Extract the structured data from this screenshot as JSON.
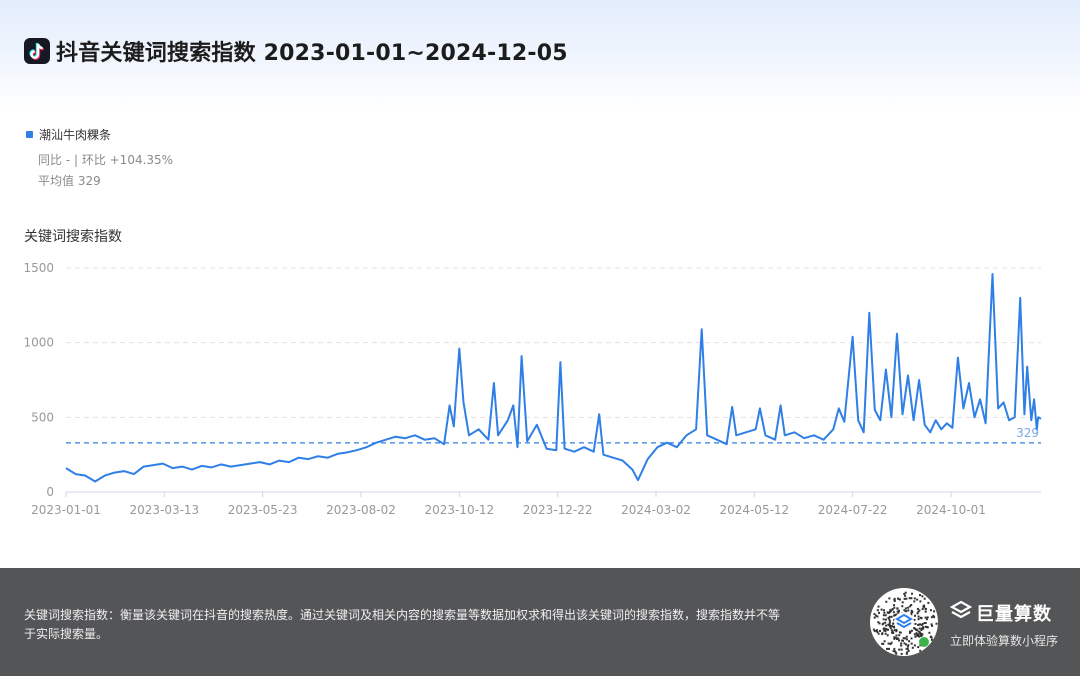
{
  "header": {
    "title": "抖音关键词搜索指数 2023-01-01~2024-12-05",
    "logo_icon": "douyin-logo-icon"
  },
  "legend": {
    "series_name": "潮汕牛肉粿条",
    "yoy_mom": "同比 - | 环比 +104.35%",
    "average": "平均值 329"
  },
  "chart_data": {
    "type": "line",
    "ylabel": "关键词搜索指数",
    "ylim": [
      0,
      1500
    ],
    "yticks": [
      0,
      500,
      1000,
      1500
    ],
    "x_range": [
      "2023-01-01",
      "2024-12-05"
    ],
    "x_ticks": [
      "2023-01-01",
      "2023-03-13",
      "2023-05-23",
      "2023-08-02",
      "2023-10-12",
      "2023-12-22",
      "2024-03-02",
      "2024-05-12",
      "2024-07-22",
      "2024-10-01"
    ],
    "grid": "horizontal-dashed",
    "average_line": {
      "value": 329,
      "label": "329"
    },
    "series": [
      {
        "name": "潮汕牛肉粿条",
        "color": "#2f7fe6",
        "points": [
          [
            "2023-01-01",
            160
          ],
          [
            "2023-01-08",
            120
          ],
          [
            "2023-01-15",
            110
          ],
          [
            "2023-01-22",
            70
          ],
          [
            "2023-01-29",
            110
          ],
          [
            "2023-02-05",
            130
          ],
          [
            "2023-02-12",
            140
          ],
          [
            "2023-02-19",
            120
          ],
          [
            "2023-02-26",
            170
          ],
          [
            "2023-03-05",
            180
          ],
          [
            "2023-03-12",
            190
          ],
          [
            "2023-03-19",
            160
          ],
          [
            "2023-03-26",
            170
          ],
          [
            "2023-04-02",
            150
          ],
          [
            "2023-04-09",
            175
          ],
          [
            "2023-04-16",
            165
          ],
          [
            "2023-04-23",
            185
          ],
          [
            "2023-04-30",
            170
          ],
          [
            "2023-05-07",
            180
          ],
          [
            "2023-05-14",
            190
          ],
          [
            "2023-05-21",
            200
          ],
          [
            "2023-05-28",
            185
          ],
          [
            "2023-06-04",
            210
          ],
          [
            "2023-06-11",
            200
          ],
          [
            "2023-06-18",
            230
          ],
          [
            "2023-06-25",
            220
          ],
          [
            "2023-07-02",
            240
          ],
          [
            "2023-07-09",
            230
          ],
          [
            "2023-07-16",
            255
          ],
          [
            "2023-07-23",
            265
          ],
          [
            "2023-07-30",
            280
          ],
          [
            "2023-08-06",
            300
          ],
          [
            "2023-08-13",
            330
          ],
          [
            "2023-08-20",
            350
          ],
          [
            "2023-08-27",
            370
          ],
          [
            "2023-09-03",
            360
          ],
          [
            "2023-09-10",
            380
          ],
          [
            "2023-09-17",
            350
          ],
          [
            "2023-09-24",
            360
          ],
          [
            "2023-10-01",
            320
          ],
          [
            "2023-10-05",
            580
          ],
          [
            "2023-10-08",
            440
          ],
          [
            "2023-10-12",
            960
          ],
          [
            "2023-10-15",
            600
          ],
          [
            "2023-10-19",
            380
          ],
          [
            "2023-10-26",
            420
          ],
          [
            "2023-11-02",
            350
          ],
          [
            "2023-11-06",
            730
          ],
          [
            "2023-11-09",
            380
          ],
          [
            "2023-11-16",
            480
          ],
          [
            "2023-11-20",
            580
          ],
          [
            "2023-11-23",
            300
          ],
          [
            "2023-11-26",
            910
          ],
          [
            "2023-11-30",
            340
          ],
          [
            "2023-12-07",
            450
          ],
          [
            "2023-12-14",
            290
          ],
          [
            "2023-12-21",
            280
          ],
          [
            "2023-12-24",
            870
          ],
          [
            "2023-12-27",
            290
          ],
          [
            "2024-01-03",
            270
          ],
          [
            "2024-01-10",
            300
          ],
          [
            "2024-01-17",
            270
          ],
          [
            "2024-01-21",
            520
          ],
          [
            "2024-01-24",
            250
          ],
          [
            "2024-01-31",
            230
          ],
          [
            "2024-02-07",
            210
          ],
          [
            "2024-02-14",
            150
          ],
          [
            "2024-02-18",
            80
          ],
          [
            "2024-02-25",
            220
          ],
          [
            "2024-03-03",
            300
          ],
          [
            "2024-03-10",
            330
          ],
          [
            "2024-03-17",
            300
          ],
          [
            "2024-03-24",
            380
          ],
          [
            "2024-03-31",
            420
          ],
          [
            "2024-04-04",
            1090
          ],
          [
            "2024-04-08",
            380
          ],
          [
            "2024-04-15",
            350
          ],
          [
            "2024-04-22",
            320
          ],
          [
            "2024-04-26",
            570
          ],
          [
            "2024-04-29",
            380
          ],
          [
            "2024-05-06",
            400
          ],
          [
            "2024-05-13",
            420
          ],
          [
            "2024-05-16",
            560
          ],
          [
            "2024-05-20",
            380
          ],
          [
            "2024-05-27",
            350
          ],
          [
            "2024-05-31",
            580
          ],
          [
            "2024-06-03",
            380
          ],
          [
            "2024-06-10",
            400
          ],
          [
            "2024-06-17",
            360
          ],
          [
            "2024-06-24",
            380
          ],
          [
            "2024-07-01",
            350
          ],
          [
            "2024-07-08",
            420
          ],
          [
            "2024-07-12",
            560
          ],
          [
            "2024-07-16",
            470
          ],
          [
            "2024-07-22",
            1040
          ],
          [
            "2024-07-26",
            480
          ],
          [
            "2024-07-30",
            400
          ],
          [
            "2024-08-03",
            1200
          ],
          [
            "2024-08-07",
            550
          ],
          [
            "2024-08-11",
            480
          ],
          [
            "2024-08-15",
            820
          ],
          [
            "2024-08-19",
            500
          ],
          [
            "2024-08-23",
            1060
          ],
          [
            "2024-08-27",
            520
          ],
          [
            "2024-08-31",
            780
          ],
          [
            "2024-09-04",
            480
          ],
          [
            "2024-09-08",
            750
          ],
          [
            "2024-09-12",
            450
          ],
          [
            "2024-09-16",
            400
          ],
          [
            "2024-09-20",
            480
          ],
          [
            "2024-09-24",
            420
          ],
          [
            "2024-09-28",
            460
          ],
          [
            "2024-10-02",
            430
          ],
          [
            "2024-10-06",
            900
          ],
          [
            "2024-10-10",
            560
          ],
          [
            "2024-10-14",
            730
          ],
          [
            "2024-10-18",
            500
          ],
          [
            "2024-10-22",
            620
          ],
          [
            "2024-10-26",
            460
          ],
          [
            "2024-10-31",
            1460
          ],
          [
            "2024-11-04",
            560
          ],
          [
            "2024-11-08",
            600
          ],
          [
            "2024-11-12",
            480
          ],
          [
            "2024-11-16",
            500
          ],
          [
            "2024-11-20",
            1300
          ],
          [
            "2024-11-23",
            520
          ],
          [
            "2024-11-25",
            840
          ],
          [
            "2024-11-28",
            480
          ],
          [
            "2024-11-30",
            620
          ],
          [
            "2024-12-02",
            420
          ],
          [
            "2024-12-03",
            500
          ],
          [
            "2024-12-05",
            490
          ]
        ]
      }
    ]
  },
  "footer": {
    "description": "关键词搜索指数：衡量该关键词在抖音的搜索热度。通过关键词及相关内容的搜索量等数据加权求和得出该关键词的搜索指数，搜索指数并不等于实际搜索量。",
    "brand_name": "巨量算数",
    "brand_sub": "立即体验算数小程序",
    "brand_icon": "juliang-logo-icon",
    "qr_icon": "mini-program-qr-icon"
  }
}
